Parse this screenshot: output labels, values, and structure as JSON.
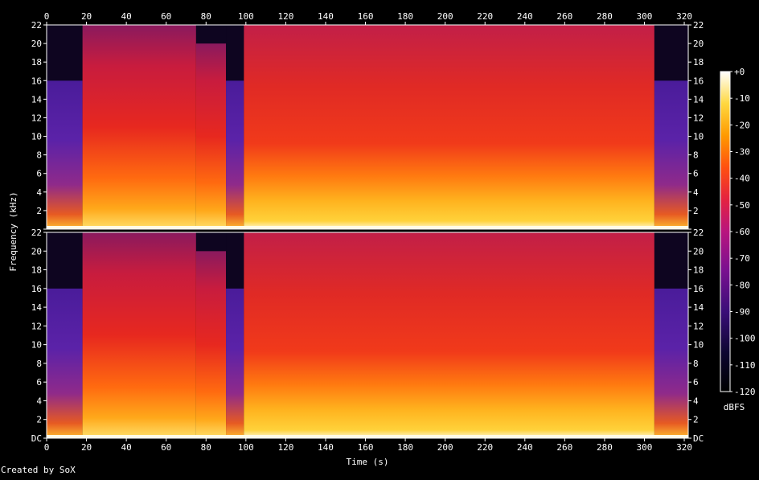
{
  "credit": "Created by SoX",
  "chart_data": {
    "type": "heatmap",
    "description_kind": "spectrogram",
    "channels": 2,
    "xlabel": "Time (s)",
    "ylabel": "Frequency (kHz)",
    "xlim": [
      0,
      322
    ],
    "ylim": [
      0,
      22
    ],
    "x_ticks": [
      "0",
      "20",
      "40",
      "60",
      "80",
      "100",
      "120",
      "140",
      "160",
      "180",
      "200",
      "220",
      "240",
      "260",
      "280",
      "300",
      "320"
    ],
    "y_ticks": [
      "DC",
      "2",
      "4",
      "6",
      "8",
      "10",
      "12",
      "14",
      "16",
      "18",
      "20",
      "22"
    ],
    "colorbar": {
      "label": "dBFS",
      "range": [
        -120,
        0
      ],
      "ticks": [
        "+0",
        "-10",
        "-20",
        "-30",
        "-40",
        "-50",
        "-60",
        "-70",
        "-80",
        "-90",
        "-100",
        "-110",
        "-120"
      ]
    },
    "segments": [
      {
        "from": 0,
        "to": 18,
        "cutoff_khz": 16,
        "level": "low"
      },
      {
        "from": 18,
        "to": 75,
        "cutoff_khz": 22,
        "level": "medium"
      },
      {
        "from": 75,
        "to": 90,
        "cutoff_khz": 20,
        "level": "medium"
      },
      {
        "from": 90,
        "to": 99,
        "cutoff_khz": 16,
        "level": "low"
      },
      {
        "from": 99,
        "to": 305,
        "cutoff_khz": 22,
        "level": "high"
      },
      {
        "from": 305,
        "to": 322,
        "cutoff_khz": 16,
        "level": "low"
      }
    ]
  }
}
